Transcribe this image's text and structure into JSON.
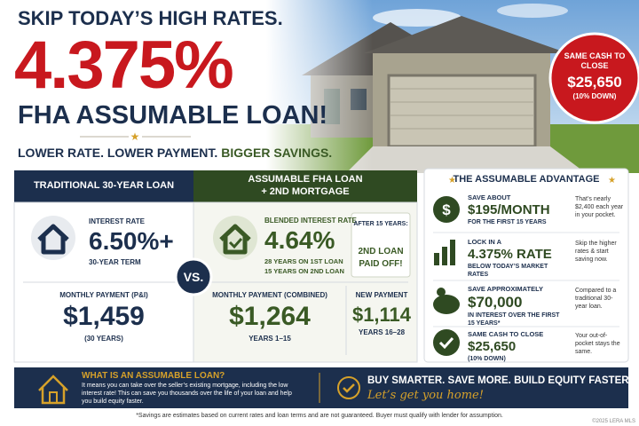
{
  "header": {
    "line1": "SKIP TODAY’S HIGH RATES.",
    "rate": "4.375%",
    "line3": "FHA ASSUMABLE LOAN!",
    "tagline": "LOWER RATE. LOWER PAYMENT.",
    "tagline_emphasis": "BIGGER SAVINGS."
  },
  "badge": {
    "label": "SAME CASH TO CLOSE",
    "amount": "$25,650",
    "note": "(10% DOWN)"
  },
  "traditional": {
    "title": "TRADITIONAL 30-YEAR LOAN",
    "rate_label": "INTEREST RATE",
    "rate": "6.50%+",
    "term": "30-YEAR TERM",
    "payment_label": "MONTHLY PAYMENT (P&I)",
    "payment": "$1,459",
    "payment_note": "(30 YEARS)"
  },
  "vs": "VS.",
  "assumable": {
    "title_line1": "ASSUMABLE FHA LOAN",
    "title_line2": "+ 2ND MORTGAGE",
    "rate_label": "BLENDED INTEREST RATE",
    "rate": "4.64%",
    "detail1": "28 YEARS ON 1ST LOAN",
    "detail2": "15 YEARS ON 2ND LOAN",
    "after_label": "AFTER 15 YEARS:",
    "after_line1": "2ND LOAN",
    "after_line2": "PAID OFF!",
    "payment_label": "MONTHLY PAYMENT (COMBINED)",
    "payment": "$1,264",
    "payment_note": "YEARS 1–15",
    "new_label": "NEW PAYMENT",
    "new_payment": "$1,114",
    "new_note": "YEARS 16–28"
  },
  "advantage": {
    "title": "THE ASSUMABLE ADVANTAGE",
    "items": [
      {
        "label": "SAVE ABOUT",
        "value": "$195/MONTH",
        "sub": "FOR THE FIRST 15 YEARS",
        "note": "That’s nearly $2,400 each year in your pocket."
      },
      {
        "label": "LOCK IN A",
        "value": "4.375% RATE",
        "sub": "BELOW TODAY’S MARKET RATES",
        "note": "Skip the higher rates & start saving now."
      },
      {
        "label": "SAVE APPROXIMATELY",
        "value": "$70,000",
        "sub": "IN INTEREST OVER THE FIRST 15 YEARS*",
        "note": "Compared to a traditional 30-year loan."
      },
      {
        "label": "SAME CASH TO CLOSE",
        "value": "$25,650",
        "sub": "(10% DOWN)",
        "note": "Your out-of-pocket stays the same."
      }
    ]
  },
  "banner": {
    "question": "WHAT IS AN ASSUMABLE LOAN?",
    "answer": "It means you can take over the seller’s existing mortgage, including the low interest rate! This can save you thousands over the life of your loan and help you build equity faster.",
    "cta": "BUY SMARTER. SAVE MORE. BUILD EQUITY FASTER.",
    "script": "Let’s get you home!"
  },
  "disclaimer": "*Savings are estimates based on current rates and loan terms and are not guaranteed. Buyer must qualify with lender for assumption.",
  "watermark": "©2025 LERA MLS"
}
